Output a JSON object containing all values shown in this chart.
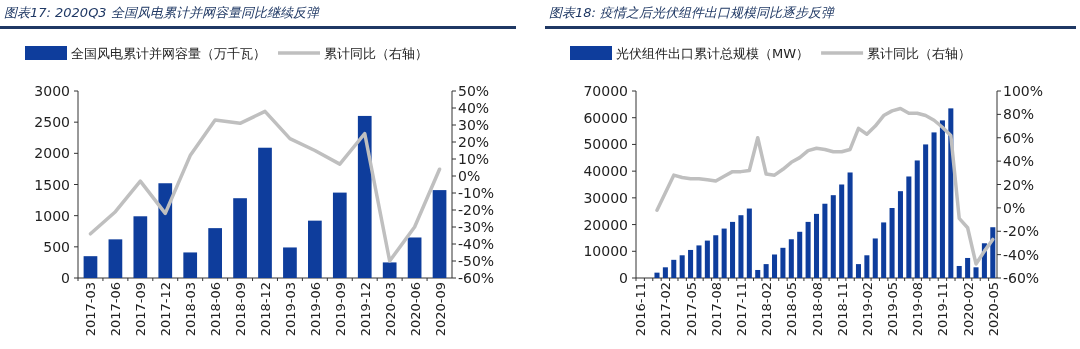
{
  "chart_data": [
    {
      "type": "bar",
      "title": "图表17:  2020Q3 全国风电累计并网容量同比继续反弹",
      "legend": "top",
      "categories": [
        "2017-03",
        "2017-06",
        "2017-09",
        "2017-12",
        "2018-03",
        "2018-06",
        "2018-09",
        "2018-12",
        "2019-03",
        "2019-06",
        "2019-09",
        "2019-12",
        "2020-03",
        "2020-06",
        "2020-09"
      ],
      "series": [
        {
          "name": "全国风电累计并网容量（万千瓦）",
          "color": "#0e3d9c",
          "values": [
            350,
            620,
            990,
            1520,
            410,
            800,
            1280,
            2090,
            490,
            920,
            1370,
            2600,
            250,
            650,
            1410
          ]
        },
        {
          "name": "累计同比（右轴）",
          "type": "line",
          "axis": "y2",
          "color": "#bfbfbf",
          "values": [
            -34,
            -21,
            -3,
            -22,
            12,
            33,
            31,
            38,
            22,
            15,
            7,
            25,
            -50,
            -30,
            4
          ]
        }
      ],
      "ylim": [
        0,
        3000
      ],
      "yticks": [
        0,
        500,
        1000,
        1500,
        2000,
        2500,
        3000
      ],
      "y2lim": [
        -60,
        50
      ],
      "y2ticks": [
        {
          "value": -60,
          "label": "-60%"
        },
        {
          "value": -50,
          "label": "-50%"
        },
        {
          "value": -40,
          "label": "-40%"
        },
        {
          "value": -30,
          "label": "-30%"
        },
        {
          "value": -20,
          "label": "-20%"
        },
        {
          "value": -10,
          "label": "-10%"
        },
        {
          "value": 0,
          "label": "0%"
        },
        {
          "value": 10,
          "label": "10%"
        },
        {
          "value": 20,
          "label": "20%"
        },
        {
          "value": 30,
          "label": "30%"
        },
        {
          "value": 40,
          "label": "40%"
        },
        {
          "value": 50,
          "label": "50%"
        }
      ]
    },
    {
      "type": "bar",
      "title": "图表18:  疫情之后光伏组件出口规模同比逐步反弹",
      "legend": "top",
      "categories": [
        "2016-11",
        null,
        null,
        "2017-02",
        null,
        null,
        "2017-05",
        null,
        null,
        "2017-08",
        null,
        null,
        "2017-11",
        null,
        null,
        "2018-02",
        null,
        null,
        "2018-05",
        null,
        null,
        "2018-08",
        null,
        null,
        "2018-11",
        null,
        null,
        "2019-02",
        null,
        null,
        "2019-05",
        null,
        null,
        "2019-08",
        null,
        null,
        "2019-11",
        null,
        null,
        "2020-02",
        null,
        null,
        "2020-05"
      ],
      "series": [
        {
          "name": "光伏组件出口累计总规模（MW）",
          "color": "#0e3d9c",
          "values": [
            null,
            null,
            2000,
            4000,
            6800,
            8500,
            10500,
            12200,
            14000,
            16000,
            18500,
            21000,
            23500,
            26000,
            3000,
            5200,
            8800,
            11300,
            14500,
            17300,
            21000,
            24000,
            27800,
            31000,
            35000,
            39500,
            5200,
            8500,
            14800,
            20800,
            26200,
            32500,
            38000,
            44000,
            50000,
            54500,
            59000,
            63500,
            4500,
            7500,
            4000,
            13000,
            19000
          ]
        },
        {
          "name": "累计同比（右轴）",
          "type": "line",
          "axis": "y2",
          "color": "#bfbfbf",
          "values": [
            null,
            null,
            -2,
            13,
            28,
            26,
            25,
            25,
            24,
            23,
            27,
            31,
            31,
            32,
            60,
            29,
            28,
            33,
            39,
            43,
            49,
            51,
            50,
            48,
            48,
            50,
            68,
            63,
            70,
            79,
            83,
            85,
            81,
            81,
            79,
            75,
            69,
            62,
            -9,
            -17,
            -48,
            -37,
            -27
          ]
        }
      ],
      "ylim": [
        0,
        70000
      ],
      "yticks": [
        0,
        10000,
        20000,
        30000,
        40000,
        50000,
        60000,
        70000
      ],
      "y2lim": [
        -60,
        100
      ],
      "y2ticks": [
        {
          "value": -60,
          "label": "-60%"
        },
        {
          "value": -40,
          "label": "-40%"
        },
        {
          "value": -20,
          "label": "-20%"
        },
        {
          "value": 0,
          "label": "0%"
        },
        {
          "value": 20,
          "label": "20%"
        },
        {
          "value": 40,
          "label": "40%"
        },
        {
          "value": 60,
          "label": "60%"
        },
        {
          "value": 80,
          "label": "80%"
        },
        {
          "value": 100,
          "label": "100%"
        }
      ]
    }
  ]
}
